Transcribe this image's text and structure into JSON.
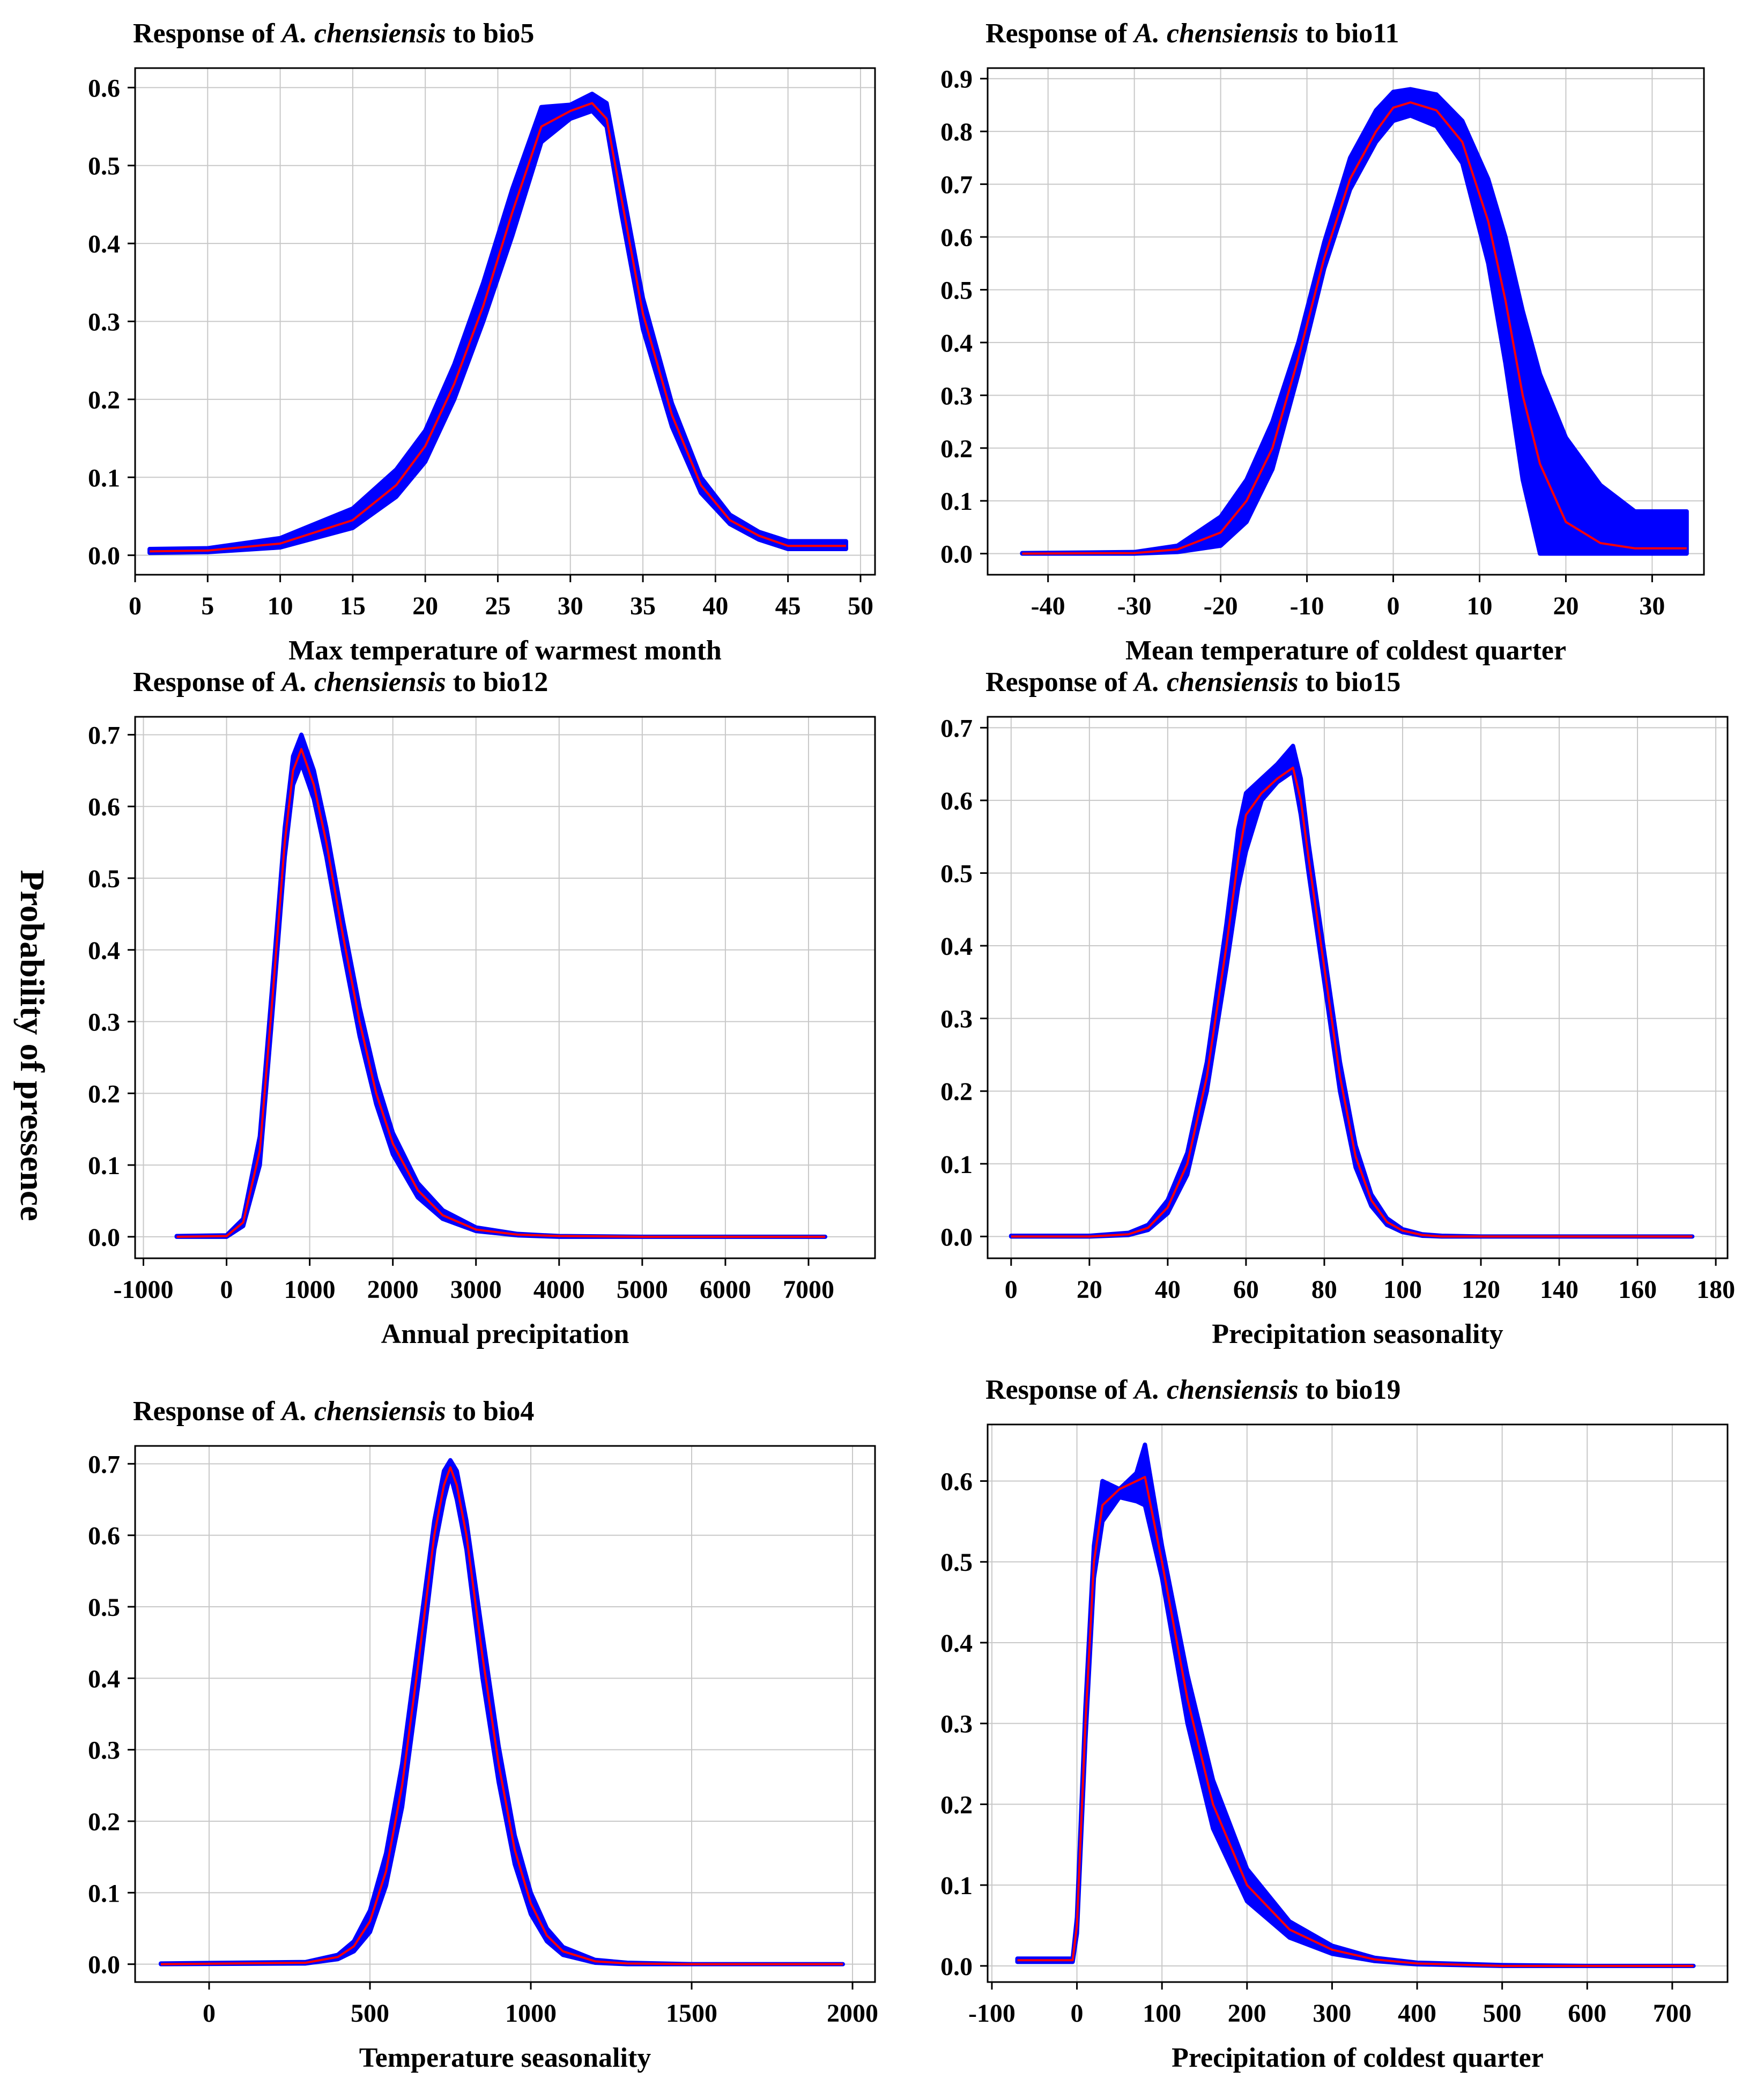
{
  "figure": {
    "ylabel": "Probability of pressence",
    "band_color": "#0000ff",
    "line_color": "#ff0000",
    "grid_color": "#c8c8c8"
  },
  "chart_data": [
    {
      "type": "line",
      "title_prefix": "Response of ",
      "species": "A. chensiensis",
      "title_suffix": " to bio5",
      "xlabel": "Max temperature of warmest month",
      "xlim": [
        0,
        51
      ],
      "ylim": [
        -0.025,
        0.625
      ],
      "xticks": [
        0,
        5,
        10,
        15,
        20,
        25,
        30,
        35,
        40,
        45,
        50
      ],
      "yticks": [
        0.0,
        0.1,
        0.2,
        0.3,
        0.4,
        0.5,
        0.6
      ],
      "series": [
        {
          "name": "mean",
          "x": [
            1,
            5,
            10,
            15,
            18,
            20,
            22,
            24,
            26,
            28,
            30,
            31.5,
            32.5,
            33.5,
            35,
            37,
            39,
            41,
            43,
            45,
            49
          ],
          "y": [
            0.005,
            0.006,
            0.015,
            0.045,
            0.09,
            0.14,
            0.22,
            0.32,
            0.44,
            0.55,
            0.57,
            0.58,
            0.56,
            0.46,
            0.31,
            0.18,
            0.09,
            0.045,
            0.025,
            0.012,
            0.012
          ]
        },
        {
          "name": "upper",
          "x": [
            1,
            5,
            10,
            15,
            18,
            20,
            22,
            24,
            26,
            28,
            30,
            31.5,
            32.5,
            33.5,
            35,
            37,
            39,
            41,
            43,
            45,
            49
          ],
          "y": [
            0.008,
            0.009,
            0.022,
            0.06,
            0.11,
            0.16,
            0.245,
            0.35,
            0.47,
            0.575,
            0.578,
            0.592,
            0.58,
            0.48,
            0.33,
            0.195,
            0.1,
            0.052,
            0.03,
            0.018,
            0.018
          ]
        },
        {
          "name": "lower",
          "x": [
            1,
            5,
            10,
            15,
            18,
            20,
            22,
            24,
            26,
            28,
            30,
            31.5,
            32.5,
            33.5,
            35,
            37,
            39,
            41,
            43,
            45,
            49
          ],
          "y": [
            0.003,
            0.004,
            0.01,
            0.035,
            0.075,
            0.12,
            0.2,
            0.3,
            0.41,
            0.53,
            0.56,
            0.57,
            0.55,
            0.44,
            0.29,
            0.165,
            0.08,
            0.04,
            0.02,
            0.008,
            0.008
          ]
        }
      ]
    },
    {
      "type": "line",
      "title_prefix": "Response of ",
      "species": "A. chensiensis",
      "title_suffix": " to bio11",
      "xlabel": "Mean temperature of coldest quarter",
      "xlim": [
        -47,
        36
      ],
      "ylim": [
        -0.04,
        0.92
      ],
      "xticks": [
        -40,
        -30,
        -20,
        -10,
        0,
        10,
        20,
        30
      ],
      "yticks": [
        0.0,
        0.1,
        0.2,
        0.3,
        0.4,
        0.5,
        0.6,
        0.7,
        0.8,
        0.9
      ],
      "series": [
        {
          "name": "mean",
          "x": [
            -43,
            -30,
            -25,
            -20,
            -17,
            -14,
            -11,
            -8,
            -5,
            -2,
            0,
            2,
            5,
            8,
            11,
            13,
            15,
            17,
            20,
            24,
            28,
            34
          ],
          "y": [
            0.0,
            0.001,
            0.008,
            0.04,
            0.1,
            0.2,
            0.37,
            0.56,
            0.71,
            0.8,
            0.845,
            0.855,
            0.84,
            0.78,
            0.63,
            0.48,
            0.3,
            0.17,
            0.06,
            0.02,
            0.01,
            0.01
          ]
        },
        {
          "name": "upper",
          "x": [
            -43,
            -30,
            -25,
            -20,
            -17,
            -14,
            -11,
            -8,
            -5,
            -2,
            0,
            2,
            5,
            8,
            11,
            13,
            15,
            17,
            20,
            24,
            28,
            34
          ],
          "y": [
            0.001,
            0.003,
            0.015,
            0.07,
            0.14,
            0.25,
            0.4,
            0.59,
            0.75,
            0.84,
            0.875,
            0.88,
            0.87,
            0.82,
            0.71,
            0.6,
            0.46,
            0.34,
            0.22,
            0.13,
            0.08,
            0.08
          ]
        },
        {
          "name": "lower",
          "x": [
            -43,
            -30,
            -25,
            -20,
            -17,
            -14,
            -11,
            -8,
            -5,
            -2,
            0,
            2,
            5,
            8,
            11,
            13,
            15,
            17,
            20,
            24,
            28,
            34
          ],
          "y": [
            0.0,
            0.0,
            0.003,
            0.015,
            0.06,
            0.16,
            0.34,
            0.54,
            0.69,
            0.78,
            0.82,
            0.83,
            0.81,
            0.74,
            0.55,
            0.36,
            0.14,
            0.0,
            0.0,
            0.0,
            0.0,
            0.0
          ]
        }
      ]
    },
    {
      "type": "line",
      "title_prefix": "Response of ",
      "species": "A. chensiensis",
      "title_suffix": " to bio12",
      "xlabel": "Annual precipitation",
      "xlim": [
        -1100,
        7800
      ],
      "ylim": [
        -0.03,
        0.725
      ],
      "xticks": [
        -1000,
        0,
        1000,
        2000,
        3000,
        4000,
        5000,
        6000,
        7000
      ],
      "yticks": [
        0.0,
        0.1,
        0.2,
        0.3,
        0.4,
        0.5,
        0.6,
        0.7
      ],
      "series": [
        {
          "name": "mean",
          "x": [
            -600,
            0,
            200,
            400,
            550,
            700,
            800,
            900,
            1050,
            1200,
            1400,
            1600,
            1800,
            2000,
            2300,
            2600,
            3000,
            3500,
            4000,
            5000,
            6000,
            7200
          ],
          "y": [
            0.0,
            0.001,
            0.02,
            0.12,
            0.33,
            0.55,
            0.65,
            0.68,
            0.63,
            0.55,
            0.42,
            0.3,
            0.2,
            0.13,
            0.065,
            0.03,
            0.01,
            0.003,
            0.001,
            0.0,
            0.0,
            0.0
          ]
        },
        {
          "name": "upper",
          "x": [
            -600,
            0,
            200,
            400,
            550,
            700,
            800,
            900,
            1050,
            1200,
            1400,
            1600,
            1800,
            2000,
            2300,
            2600,
            3000,
            3500,
            4000,
            5000,
            6000,
            7200
          ],
          "y": [
            0.001,
            0.002,
            0.025,
            0.14,
            0.35,
            0.57,
            0.67,
            0.7,
            0.65,
            0.57,
            0.44,
            0.32,
            0.22,
            0.145,
            0.075,
            0.037,
            0.013,
            0.004,
            0.001,
            0.0,
            0.0,
            0.0
          ]
        },
        {
          "name": "lower",
          "x": [
            -600,
            0,
            200,
            400,
            550,
            700,
            800,
            900,
            1050,
            1200,
            1400,
            1600,
            1800,
            2000,
            2300,
            2600,
            3000,
            3500,
            4000,
            5000,
            6000,
            7200
          ],
          "y": [
            0.0,
            0.0,
            0.015,
            0.1,
            0.31,
            0.53,
            0.63,
            0.66,
            0.61,
            0.53,
            0.4,
            0.28,
            0.185,
            0.115,
            0.055,
            0.025,
            0.008,
            0.002,
            0.0,
            0.0,
            0.0,
            0.0
          ]
        }
      ]
    },
    {
      "type": "line",
      "title_prefix": "Response of ",
      "species": "A. chensiensis",
      "title_suffix": " to bio15",
      "xlabel": "Precipitation seasonality",
      "xlim": [
        -6,
        183
      ],
      "ylim": [
        -0.03,
        0.715
      ],
      "xticks": [
        0,
        20,
        40,
        60,
        80,
        100,
        120,
        140,
        160,
        180
      ],
      "yticks": [
        0.0,
        0.1,
        0.2,
        0.3,
        0.4,
        0.5,
        0.6,
        0.7
      ],
      "series": [
        {
          "name": "mean",
          "x": [
            0,
            20,
            30,
            35,
            40,
            45,
            50,
            55,
            58,
            60,
            64,
            68,
            72,
            74,
            76,
            80,
            84,
            88,
            92,
            96,
            100,
            105,
            110,
            120,
            140,
            174
          ],
          "y": [
            0.0,
            0.0,
            0.003,
            0.012,
            0.04,
            0.1,
            0.22,
            0.4,
            0.52,
            0.58,
            0.61,
            0.63,
            0.645,
            0.6,
            0.52,
            0.37,
            0.22,
            0.11,
            0.05,
            0.02,
            0.008,
            0.002,
            0.0,
            0.0,
            0.0,
            0.0
          ]
        },
        {
          "name": "upper",
          "x": [
            0,
            20,
            30,
            35,
            40,
            45,
            50,
            55,
            58,
            60,
            64,
            68,
            72,
            74,
            76,
            80,
            84,
            88,
            92,
            96,
            100,
            105,
            110,
            120,
            140,
            174
          ],
          "y": [
            0.001,
            0.001,
            0.005,
            0.016,
            0.05,
            0.115,
            0.24,
            0.43,
            0.56,
            0.61,
            0.63,
            0.65,
            0.675,
            0.63,
            0.54,
            0.39,
            0.24,
            0.125,
            0.058,
            0.025,
            0.01,
            0.003,
            0.001,
            0.0,
            0.0,
            0.0
          ]
        },
        {
          "name": "lower",
          "x": [
            0,
            20,
            30,
            35,
            40,
            45,
            50,
            55,
            58,
            60,
            64,
            68,
            72,
            74,
            76,
            80,
            84,
            88,
            92,
            96,
            100,
            105,
            110,
            120,
            140,
            174
          ],
          "y": [
            0.0,
            0.0,
            0.002,
            0.009,
            0.032,
            0.085,
            0.2,
            0.37,
            0.48,
            0.53,
            0.6,
            0.625,
            0.64,
            0.58,
            0.5,
            0.35,
            0.2,
            0.095,
            0.042,
            0.016,
            0.006,
            0.001,
            0.0,
            0.0,
            0.0,
            0.0
          ]
        }
      ]
    },
    {
      "type": "line",
      "title_prefix": "Response of ",
      "species": "A. chensiensis",
      "title_suffix": " to bio4",
      "xlabel": "Temperature seasonality",
      "xlim": [
        -230,
        2070
      ],
      "ylim": [
        -0.025,
        0.725
      ],
      "xticks": [
        0,
        500,
        1000,
        1500,
        2000
      ],
      "yticks": [
        0.0,
        0.1,
        0.2,
        0.3,
        0.4,
        0.5,
        0.6,
        0.7
      ],
      "series": [
        {
          "name": "mean",
          "x": [
            -150,
            300,
            400,
            450,
            500,
            550,
            600,
            650,
            700,
            730,
            750,
            770,
            800,
            850,
            900,
            950,
            1000,
            1050,
            1100,
            1200,
            1300,
            1500,
            1970
          ],
          "y": [
            0.0,
            0.002,
            0.01,
            0.025,
            0.06,
            0.13,
            0.25,
            0.42,
            0.6,
            0.67,
            0.695,
            0.67,
            0.6,
            0.43,
            0.28,
            0.16,
            0.085,
            0.04,
            0.018,
            0.004,
            0.001,
            0.0,
            0.0
          ]
        },
        {
          "name": "upper",
          "x": [
            -150,
            300,
            400,
            450,
            500,
            550,
            600,
            650,
            700,
            730,
            750,
            770,
            800,
            850,
            900,
            950,
            1000,
            1050,
            1100,
            1200,
            1300,
            1500,
            1970
          ],
          "y": [
            0.001,
            0.003,
            0.013,
            0.032,
            0.075,
            0.155,
            0.28,
            0.45,
            0.62,
            0.69,
            0.705,
            0.69,
            0.62,
            0.46,
            0.305,
            0.18,
            0.1,
            0.05,
            0.024,
            0.006,
            0.002,
            0.0,
            0.0
          ]
        },
        {
          "name": "lower",
          "x": [
            -150,
            300,
            400,
            450,
            500,
            550,
            600,
            650,
            700,
            730,
            750,
            770,
            800,
            850,
            900,
            950,
            1000,
            1050,
            1100,
            1200,
            1300,
            1500,
            1970
          ],
          "y": [
            0.0,
            0.001,
            0.007,
            0.018,
            0.045,
            0.11,
            0.22,
            0.39,
            0.58,
            0.65,
            0.685,
            0.65,
            0.58,
            0.4,
            0.255,
            0.14,
            0.07,
            0.032,
            0.013,
            0.002,
            0.0,
            0.0,
            0.0
          ]
        }
      ]
    },
    {
      "type": "line",
      "title_prefix": "Response of ",
      "species": "A. chensiensis",
      "title_suffix": " to bio19",
      "xlabel": "Precipitation of coldest quarter",
      "xlim": [
        -105,
        765
      ],
      "ylim": [
        -0.02,
        0.67
      ],
      "xticks": [
        -100,
        0,
        100,
        200,
        300,
        400,
        500,
        600,
        700
      ],
      "yticks": [
        0.0,
        0.1,
        0.2,
        0.3,
        0.4,
        0.5,
        0.6
      ],
      "series": [
        {
          "name": "mean",
          "x": [
            -70,
            -5,
            0,
            10,
            20,
            30,
            50,
            70,
            80,
            100,
            130,
            160,
            200,
            250,
            300,
            350,
            400,
            500,
            600,
            725
          ],
          "y": [
            0.007,
            0.007,
            0.05,
            0.3,
            0.5,
            0.57,
            0.59,
            0.6,
            0.605,
            0.5,
            0.33,
            0.2,
            0.1,
            0.045,
            0.02,
            0.008,
            0.003,
            0.0,
            0.0,
            0.0
          ]
        },
        {
          "name": "upper",
          "x": [
            -70,
            -5,
            0,
            10,
            20,
            30,
            50,
            70,
            80,
            100,
            130,
            160,
            200,
            250,
            300,
            350,
            400,
            500,
            600,
            725
          ],
          "y": [
            0.009,
            0.009,
            0.06,
            0.32,
            0.52,
            0.6,
            0.59,
            0.61,
            0.645,
            0.52,
            0.36,
            0.23,
            0.12,
            0.055,
            0.025,
            0.01,
            0.004,
            0.001,
            0.0,
            0.0
          ]
        },
        {
          "name": "lower",
          "x": [
            -70,
            -5,
            0,
            10,
            20,
            30,
            50,
            70,
            80,
            100,
            130,
            160,
            200,
            250,
            300,
            350,
            400,
            500,
            600,
            725
          ],
          "y": [
            0.005,
            0.005,
            0.04,
            0.28,
            0.48,
            0.55,
            0.58,
            0.575,
            0.57,
            0.48,
            0.3,
            0.17,
            0.08,
            0.035,
            0.015,
            0.006,
            0.002,
            0.0,
            0.0,
            0.0
          ]
        }
      ]
    }
  ]
}
